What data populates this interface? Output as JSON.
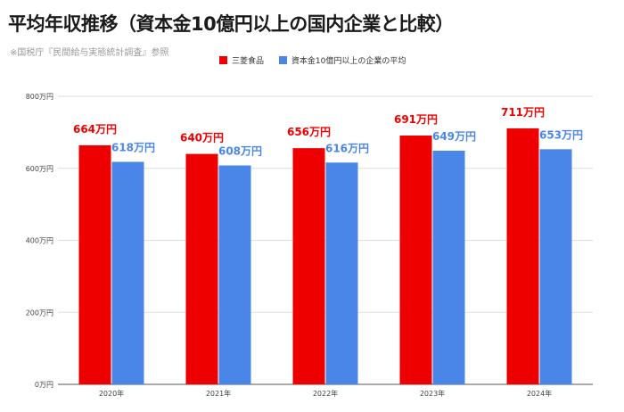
{
  "title": "平均年収推移（資本金10億円以上の国内企業と比較）",
  "subtitle": "※国税庁『民間給与実態統計調査』参照",
  "colors": {
    "company": "#ee0000",
    "average": "#4a86e8",
    "grid": "#dddddd",
    "axis_text": "#444444"
  },
  "chart_data": {
    "type": "bar",
    "categories": [
      "2020年",
      "2021年",
      "2022年",
      "2023年",
      "2024年"
    ],
    "series": [
      {
        "name": "三菱食品",
        "values": [
          664,
          640,
          656,
          691,
          711
        ],
        "labels": [
          "664万円",
          "640万円",
          "656万円",
          "691万円",
          "711万円"
        ]
      },
      {
        "name": "資本金10億円以上の企業の平均",
        "values": [
          618,
          608,
          616,
          649,
          653
        ],
        "labels": [
          "618万円",
          "608万円",
          "616万円",
          "649万円",
          "653万円"
        ]
      }
    ],
    "ylim": [
      0,
      800
    ],
    "y_ticks": [
      0,
      200,
      400,
      600,
      800
    ],
    "y_tick_labels": [
      "0万円",
      "200万円",
      "400万円",
      "600万円",
      "800万円"
    ],
    "grid": true,
    "legend_position": "top-center"
  }
}
